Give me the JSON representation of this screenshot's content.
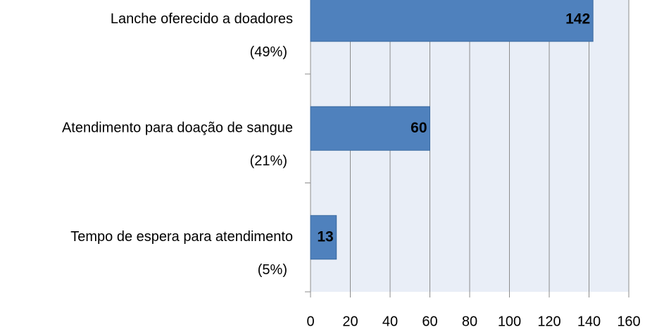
{
  "chart_data": {
    "type": "barh",
    "categories": [
      "Lanche oferecido a doadores",
      "Atendimento para doação de sangue",
      "Tempo de espera para atendimento"
    ],
    "category_shares": [
      "(49%)",
      "(21%)",
      "(5%)"
    ],
    "values": [
      142,
      60,
      13
    ],
    "color": "#4f81bd",
    "xlim": [
      0,
      160
    ],
    "xticks": [
      0,
      20,
      40,
      60,
      80,
      100,
      120,
      140,
      160
    ],
    "grid": true
  }
}
